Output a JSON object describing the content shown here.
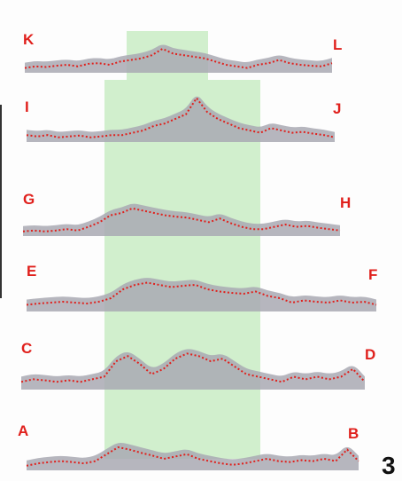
{
  "figure_number": "3",
  "colors": {
    "highlight": "#c9ecc4",
    "profile_fill": "#a9a9b3",
    "trace": "#e0201c",
    "label": "#e0201c"
  },
  "profiles": [
    {
      "id": "K-L",
      "left_label": "K",
      "right_label": "L",
      "values": [
        0.15,
        0.2,
        0.18,
        0.22,
        0.25,
        0.2,
        0.28,
        0.3,
        0.25,
        0.35,
        0.4,
        0.45,
        0.55,
        0.75,
        0.6,
        0.55,
        0.5,
        0.45,
        0.35,
        0.25,
        0.2,
        0.15,
        0.25,
        0.3,
        0.4,
        0.3,
        0.25,
        0.22,
        0.2,
        0.3
      ]
    },
    {
      "id": "I-J",
      "left_label": "I",
      "right_label": "J",
      "values": [
        0.15,
        0.12,
        0.15,
        0.1,
        0.12,
        0.14,
        0.1,
        0.12,
        0.15,
        0.15,
        0.2,
        0.25,
        0.35,
        0.4,
        0.5,
        0.6,
        0.95,
        0.65,
        0.5,
        0.4,
        0.3,
        0.25,
        0.2,
        0.3,
        0.25,
        0.2,
        0.22,
        0.18,
        0.15,
        0.1
      ]
    },
    {
      "id": "G-H",
      "left_label": "G",
      "right_label": "H",
      "values": [
        0.1,
        0.12,
        0.1,
        0.12,
        0.15,
        0.12,
        0.2,
        0.3,
        0.45,
        0.5,
        0.6,
        0.55,
        0.5,
        0.45,
        0.42,
        0.4,
        0.35,
        0.3,
        0.38,
        0.28,
        0.2,
        0.15,
        0.15,
        0.2,
        0.25,
        0.2,
        0.22,
        0.18,
        0.15,
        0.12
      ]
    },
    {
      "id": "E-F",
      "left_label": "E",
      "right_label": "F",
      "values": [
        0.15,
        0.18,
        0.2,
        0.22,
        0.2,
        0.18,
        0.22,
        0.3,
        0.5,
        0.6,
        0.65,
        0.6,
        0.55,
        0.58,
        0.6,
        0.5,
        0.45,
        0.42,
        0.4,
        0.45,
        0.35,
        0.3,
        0.2,
        0.25,
        0.22,
        0.2,
        0.25,
        0.2,
        0.22,
        0.15
      ]
    },
    {
      "id": "C-D",
      "left_label": "C",
      "right_label": "D",
      "values": [
        0.15,
        0.2,
        0.18,
        0.15,
        0.18,
        0.15,
        0.2,
        0.25,
        0.55,
        0.65,
        0.5,
        0.3,
        0.4,
        0.6,
        0.7,
        0.65,
        0.55,
        0.6,
        0.45,
        0.3,
        0.25,
        0.2,
        0.15,
        0.25,
        0.2,
        0.25,
        0.2,
        0.25,
        0.4,
        0.15
      ]
    },
    {
      "id": "A-B",
      "left_label": "A",
      "right_label": "B",
      "values": [
        0.1,
        0.15,
        0.18,
        0.2,
        0.18,
        0.15,
        0.2,
        0.35,
        0.5,
        0.45,
        0.38,
        0.32,
        0.25,
        0.3,
        0.35,
        0.25,
        0.2,
        0.15,
        0.12,
        0.15,
        0.2,
        0.25,
        0.2,
        0.18,
        0.22,
        0.2,
        0.25,
        0.2,
        0.45,
        0.2
      ]
    }
  ]
}
